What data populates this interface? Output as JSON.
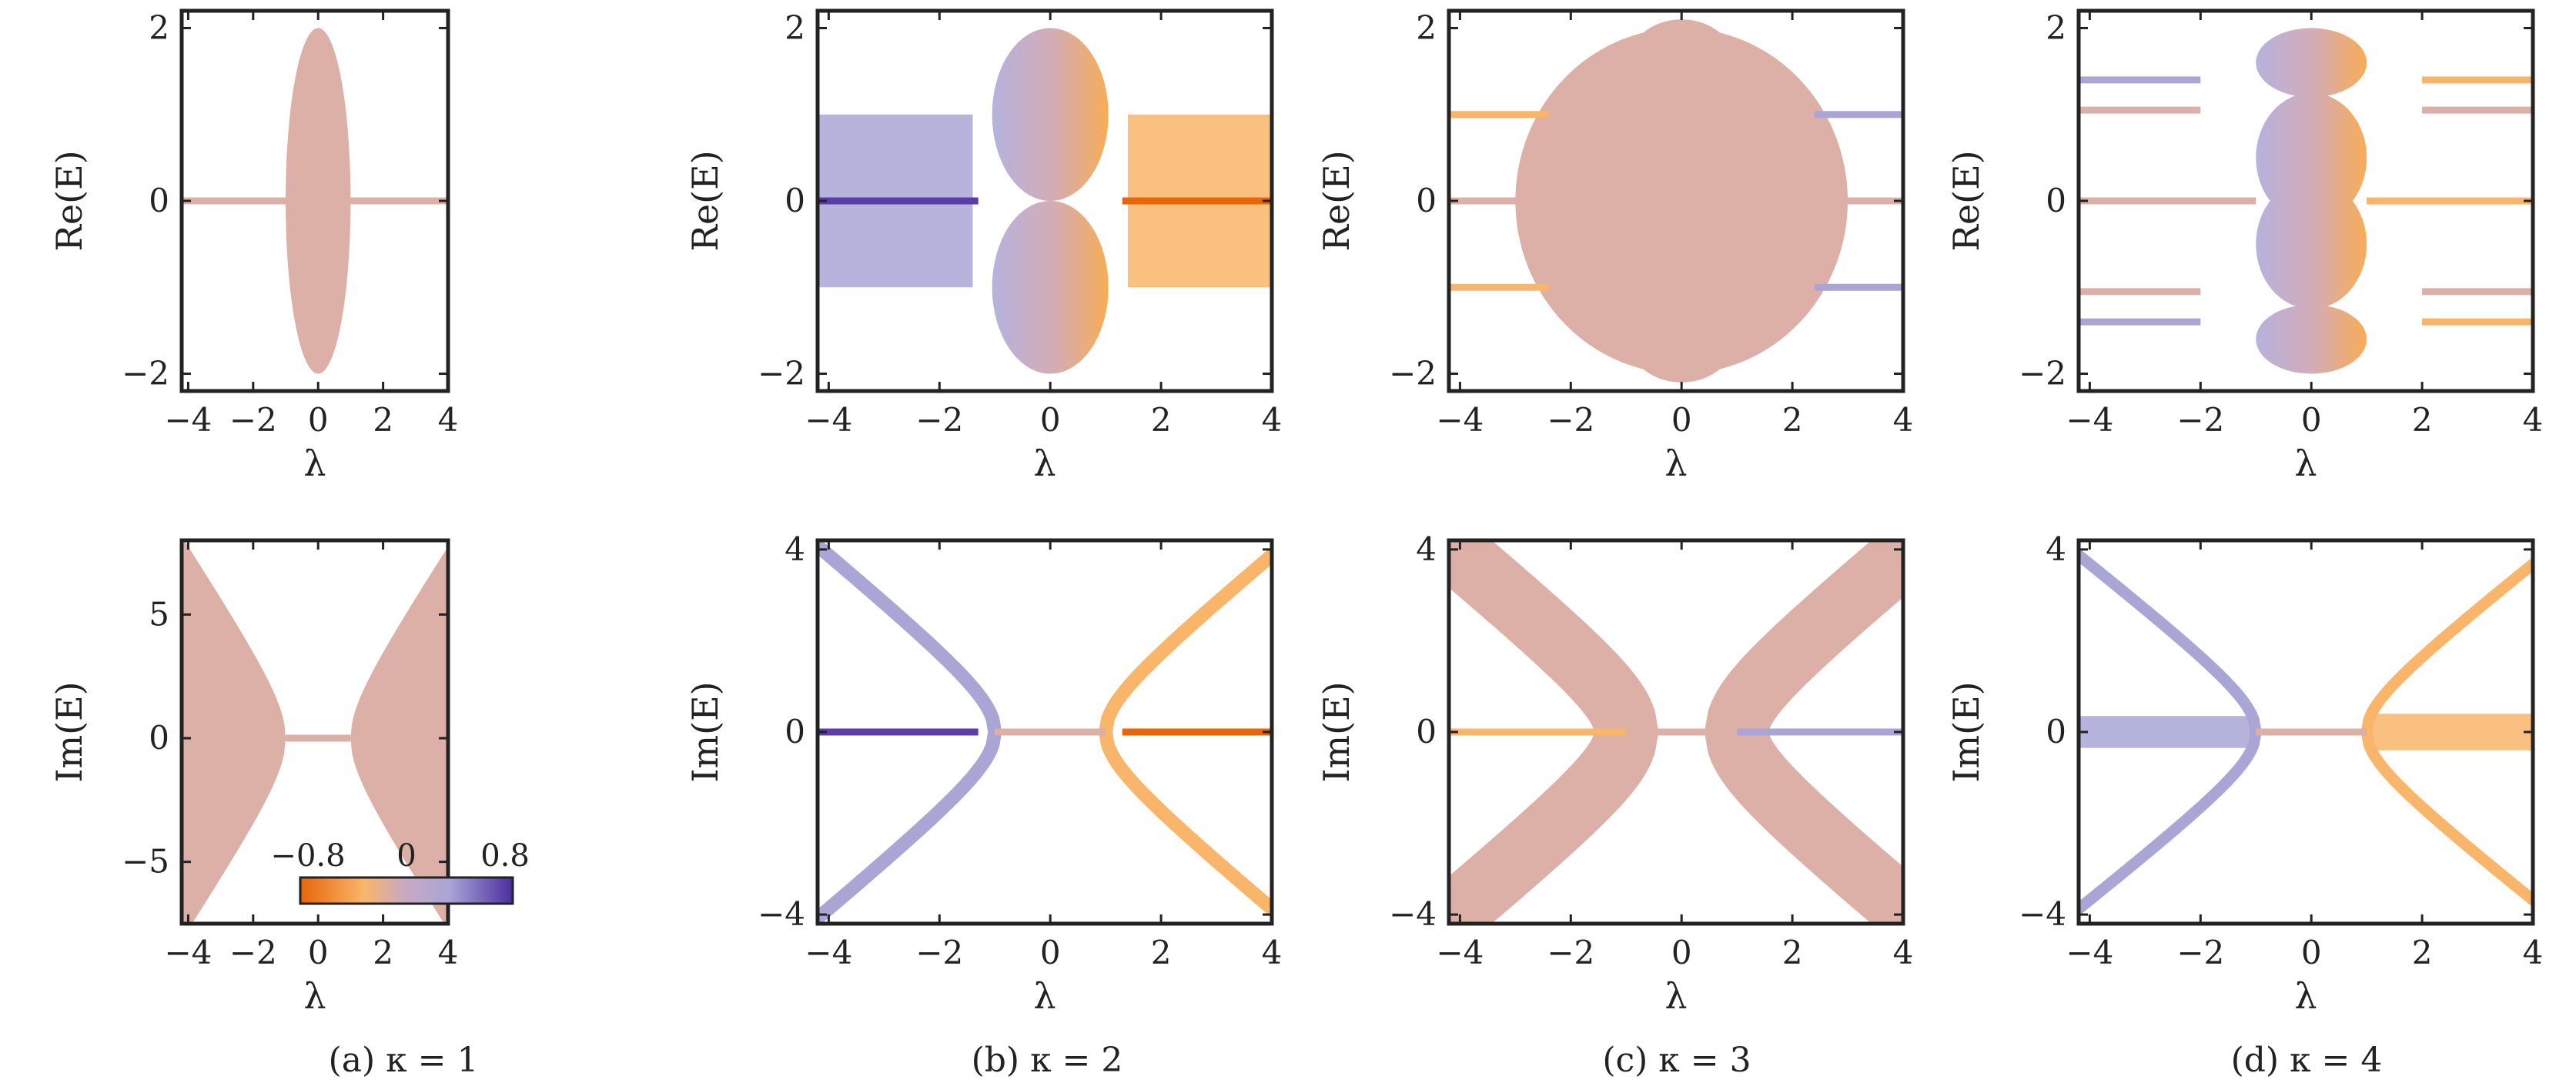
{
  "captions": [
    "(a) κ = 1",
    "(b) κ = 2",
    "(c) κ = 3",
    "(d) κ = 4"
  ],
  "colorbar": {
    "tick_labels": [
      "−0.8",
      "0",
      "0.8"
    ],
    "range": [
      -0.8,
      0.8
    ],
    "colors": [
      "#e8650a",
      "#f9b56a",
      "#c7a8c4",
      "#a9a6d6",
      "#4b2ea0"
    ]
  },
  "colors": {
    "neutral": "#dcb0a6",
    "blue": "#a9a6d6",
    "deep_blue": "#5b3da8",
    "orange": "#f9b56a",
    "deep_orange": "#e8650a",
    "frame": "#222222"
  },
  "chart_data": [
    {
      "id": "a-top",
      "panel": "a",
      "row": "top",
      "type": "area",
      "xlabel": "λ",
      "ylabel": "Re(E)",
      "xlim": [
        -4.2,
        4.0
      ],
      "ylim": [
        -2.2,
        2.2
      ],
      "xticks": [
        -4,
        -2,
        0,
        2,
        4
      ],
      "xtick_labels": [
        "−4",
        "−2",
        "0",
        "2",
        "4"
      ],
      "yticks": [
        -2,
        0,
        2
      ],
      "ytick_labels": [
        "−2",
        "0",
        "2"
      ],
      "bands": [
        {
          "kind": "ellipse",
          "cx": 0,
          "cy": 0,
          "rx": 1.0,
          "ry": 2.0,
          "color": "neutral"
        },
        {
          "kind": "line",
          "x": [
            -4.2,
            -1
          ],
          "y": [
            0,
            0
          ],
          "color": "neutral"
        },
        {
          "kind": "line",
          "x": [
            1,
            4.0
          ],
          "y": [
            0,
            0
          ],
          "color": "neutral"
        }
      ]
    },
    {
      "id": "b-top",
      "panel": "b",
      "row": "top",
      "type": "area",
      "xlabel": "λ",
      "ylabel": "Re(E)",
      "xlim": [
        -4.2,
        4.0
      ],
      "ylim": [
        -2.2,
        2.2
      ],
      "xticks": [
        -4,
        -2,
        0,
        2,
        4
      ],
      "xtick_labels": [
        "−4",
        "−2",
        "0",
        "2",
        "4"
      ],
      "yticks": [
        -2,
        0,
        2
      ],
      "ytick_labels": [
        "−2",
        "0",
        "2"
      ],
      "bands": [
        {
          "kind": "rect",
          "x": [
            -4.2,
            -1.4
          ],
          "y": [
            -1.0,
            1.0
          ],
          "color": "blue"
        },
        {
          "kind": "rect",
          "x": [
            1.4,
            4.0
          ],
          "y": [
            -1.0,
            1.0
          ],
          "color": "orange"
        },
        {
          "kind": "ellipse_split",
          "cx": 0,
          "cy": 1.0,
          "rx": 1.05,
          "ry": 1.0
        },
        {
          "kind": "ellipse_split",
          "cx": 0,
          "cy": -1.0,
          "rx": 1.05,
          "ry": 1.0
        },
        {
          "kind": "line",
          "x": [
            -4.2,
            -1.3
          ],
          "y": [
            0,
            0
          ],
          "color": "deep_blue"
        },
        {
          "kind": "line",
          "x": [
            1.3,
            4.0
          ],
          "y": [
            0,
            0
          ],
          "color": "deep_orange"
        }
      ]
    },
    {
      "id": "c-top",
      "panel": "c",
      "row": "top",
      "type": "area",
      "xlabel": "λ",
      "ylabel": "Re(E)",
      "xlim": [
        -4.2,
        4.0
      ],
      "ylim": [
        -2.2,
        2.2
      ],
      "xticks": [
        -4,
        -2,
        0,
        2,
        4
      ],
      "xtick_labels": [
        "−4",
        "−2",
        "0",
        "2",
        "4"
      ],
      "yticks": [
        -2,
        0,
        2
      ],
      "ytick_labels": [
        "−2",
        "0",
        "2"
      ],
      "bands": [
        {
          "kind": "ellipse",
          "cx": 0,
          "cy": 0,
          "rx": 3.0,
          "ry": 2.0,
          "color": "neutral"
        },
        {
          "kind": "ellipse",
          "cx": 0,
          "cy": 1.55,
          "rx": 1.0,
          "ry": 0.55,
          "color": "neutral"
        },
        {
          "kind": "ellipse",
          "cx": 0,
          "cy": -1.55,
          "rx": 1.0,
          "ry": 0.55,
          "color": "neutral"
        },
        {
          "kind": "line",
          "x": [
            -4.2,
            4.0
          ],
          "y": [
            0,
            0
          ],
          "color": "neutral"
        },
        {
          "kind": "line",
          "x": [
            -4.2,
            -2.4
          ],
          "y": [
            1.0,
            1.0
          ],
          "color": "orange"
        },
        {
          "kind": "line",
          "x": [
            -4.2,
            -2.4
          ],
          "y": [
            -1.0,
            -1.0
          ],
          "color": "orange"
        },
        {
          "kind": "line",
          "x": [
            2.4,
            4.0
          ],
          "y": [
            1.0,
            1.0
          ],
          "color": "blue"
        },
        {
          "kind": "line",
          "x": [
            2.4,
            4.0
          ],
          "y": [
            -1.0,
            -1.0
          ],
          "color": "blue"
        }
      ]
    },
    {
      "id": "d-top",
      "panel": "d",
      "row": "top",
      "type": "area",
      "xlabel": "λ",
      "ylabel": "Re(E)",
      "xlim": [
        -4.2,
        4.0
      ],
      "ylim": [
        -2.2,
        2.2
      ],
      "xticks": [
        -4,
        -2,
        0,
        2,
        4
      ],
      "xtick_labels": [
        "−4",
        "−2",
        "0",
        "2",
        "4"
      ],
      "yticks": [
        -2,
        0,
        2
      ],
      "ytick_labels": [
        "−2",
        "0",
        "2"
      ],
      "bands": [
        {
          "kind": "ellipse_split",
          "cx": 0,
          "cy": 1.6,
          "rx": 1.0,
          "ry": 0.4
        },
        {
          "kind": "ellipse_split",
          "cx": 0,
          "cy": 0.5,
          "rx": 1.0,
          "ry": 0.75
        },
        {
          "kind": "ellipse_split",
          "cx": 0,
          "cy": -0.5,
          "rx": 1.0,
          "ry": 0.75
        },
        {
          "kind": "ellipse_split",
          "cx": 0,
          "cy": -1.6,
          "rx": 1.0,
          "ry": 0.4
        },
        {
          "kind": "line",
          "x": [
            -4.2,
            -2.0
          ],
          "y": [
            1.4,
            1.4
          ],
          "color": "blue"
        },
        {
          "kind": "line",
          "x": [
            -4.2,
            -2.0
          ],
          "y": [
            1.05,
            1.05
          ],
          "color": "neutral"
        },
        {
          "kind": "line",
          "x": [
            -4.2,
            -2.0
          ],
          "y": [
            -1.05,
            -1.05
          ],
          "color": "neutral"
        },
        {
          "kind": "line",
          "x": [
            -4.2,
            -2.0
          ],
          "y": [
            -1.4,
            -1.4
          ],
          "color": "blue"
        },
        {
          "kind": "line",
          "x": [
            2.0,
            4.0
          ],
          "y": [
            1.4,
            1.4
          ],
          "color": "orange"
        },
        {
          "kind": "line",
          "x": [
            2.0,
            4.0
          ],
          "y": [
            1.05,
            1.05
          ],
          "color": "neutral"
        },
        {
          "kind": "line",
          "x": [
            2.0,
            4.0
          ],
          "y": [
            -1.05,
            -1.05
          ],
          "color": "neutral"
        },
        {
          "kind": "line",
          "x": [
            2.0,
            4.0
          ],
          "y": [
            -1.4,
            -1.4
          ],
          "color": "orange"
        },
        {
          "kind": "line",
          "x": [
            -4.2,
            -1.0
          ],
          "y": [
            0,
            0
          ],
          "color": "neutral"
        },
        {
          "kind": "line",
          "x": [
            1.0,
            4.0
          ],
          "y": [
            0,
            0
          ],
          "color": "orange"
        }
      ]
    },
    {
      "id": "a-bottom",
      "panel": "a",
      "row": "bottom",
      "type": "area",
      "xlabel": "λ",
      "ylabel": "Im(E)",
      "xlim": [
        -4.2,
        4.0
      ],
      "ylim": [
        -7.5,
        8.0
      ],
      "xticks": [
        -4,
        -2,
        0,
        2,
        4
      ],
      "xtick_labels": [
        "−4",
        "−2",
        "0",
        "2",
        "4"
      ],
      "yticks": [
        -5,
        0,
        5
      ],
      "ytick_labels": [
        "−5",
        "0",
        "5"
      ],
      "bands": [
        {
          "kind": "hyperbola_fill",
          "a": 1.0,
          "k": 2.0,
          "side": -1,
          "color": "neutral"
        },
        {
          "kind": "hyperbola_fill",
          "a": 1.0,
          "k": 2.0,
          "side": 1,
          "color": "neutral"
        },
        {
          "kind": "line",
          "x": [
            -1,
            1
          ],
          "y": [
            0,
            0
          ],
          "color": "neutral"
        }
      ]
    },
    {
      "id": "b-bottom",
      "panel": "b",
      "row": "bottom",
      "type": "area",
      "xlabel": "λ",
      "ylabel": "Im(E)",
      "xlim": [
        -4.2,
        4.0
      ],
      "ylim": [
        -4.2,
        4.2
      ],
      "xticks": [
        -4,
        -2,
        0,
        2,
        4
      ],
      "xtick_labels": [
        "−4",
        "−2",
        "0",
        "2",
        "4"
      ],
      "yticks": [
        -4,
        0,
        4
      ],
      "ytick_labels": [
        "−4",
        "0",
        "4"
      ],
      "bands": [
        {
          "kind": "hyperbola_band",
          "a": 1.0,
          "k": 1.0,
          "side": -1,
          "width": 0.3,
          "color": "blue"
        },
        {
          "kind": "hyperbola_band",
          "a": 1.0,
          "k": 1.0,
          "side": 1,
          "width": 0.3,
          "color": "orange"
        },
        {
          "kind": "line",
          "x": [
            -4.2,
            -1.3
          ],
          "y": [
            0,
            0
          ],
          "color": "deep_blue"
        },
        {
          "kind": "line",
          "x": [
            1.3,
            4.0
          ],
          "y": [
            0,
            0
          ],
          "color": "deep_orange"
        },
        {
          "kind": "line",
          "x": [
            -1.0,
            1.0
          ],
          "y": [
            0,
            0
          ],
          "color": "neutral"
        }
      ]
    },
    {
      "id": "c-bottom",
      "panel": "c",
      "row": "bottom",
      "type": "area",
      "xlabel": "λ",
      "ylabel": "Im(E)",
      "xlim": [
        -4.2,
        4.0
      ],
      "ylim": [
        -4.2,
        4.2
      ],
      "xticks": [
        -4,
        -2,
        0,
        2,
        4
      ],
      "xtick_labels": [
        "−4",
        "−2",
        "0",
        "2",
        "4"
      ],
      "yticks": [
        -4,
        0,
        4
      ],
      "ytick_labels": [
        "−4",
        "0",
        "4"
      ],
      "bands": [
        {
          "kind": "hyperbola_band",
          "a": 1.0,
          "k": 1.0,
          "side": -1,
          "width": 1.4,
          "color": "neutral"
        },
        {
          "kind": "hyperbola_band",
          "a": 1.0,
          "k": 1.0,
          "side": 1,
          "width": 1.4,
          "color": "neutral"
        },
        {
          "kind": "line",
          "x": [
            -4.2,
            -1.0
          ],
          "y": [
            0,
            0
          ],
          "color": "orange"
        },
        {
          "kind": "line",
          "x": [
            1.0,
            4.0
          ],
          "y": [
            0,
            0
          ],
          "color": "blue"
        },
        {
          "kind": "line",
          "x": [
            -1.0,
            1.0
          ],
          "y": [
            0,
            0
          ],
          "color": "neutral"
        }
      ]
    },
    {
      "id": "d-bottom",
      "panel": "d",
      "row": "bottom",
      "type": "area",
      "xlabel": "λ",
      "ylabel": "Im(E)",
      "xlim": [
        -4.2,
        4.0
      ],
      "ylim": [
        -4.2,
        4.2
      ],
      "xticks": [
        -4,
        -2,
        0,
        2,
        4
      ],
      "xtick_labels": [
        "−4",
        "−2",
        "0",
        "2",
        "4"
      ],
      "yticks": [
        -4,
        0,
        4
      ],
      "ytick_labels": [
        "−4",
        "0",
        "4"
      ],
      "bands": [
        {
          "kind": "hyperbola_band",
          "a": 1.0,
          "k": 0.95,
          "side": -1,
          "width": 0.25,
          "color": "blue"
        },
        {
          "kind": "hyperbola_band",
          "a": 1.0,
          "k": 0.95,
          "side": 1,
          "width": 0.25,
          "color": "orange"
        },
        {
          "kind": "rect",
          "x": [
            -4.2,
            -1.0
          ],
          "y": [
            -0.35,
            0.35
          ],
          "color": "blue"
        },
        {
          "kind": "rect",
          "x": [
            1.0,
            4.0
          ],
          "y": [
            -0.4,
            0.4
          ],
          "color": "orange"
        },
        {
          "kind": "line",
          "x": [
            -1.0,
            1.0
          ],
          "y": [
            0,
            0
          ],
          "color": "neutral"
        }
      ]
    }
  ]
}
